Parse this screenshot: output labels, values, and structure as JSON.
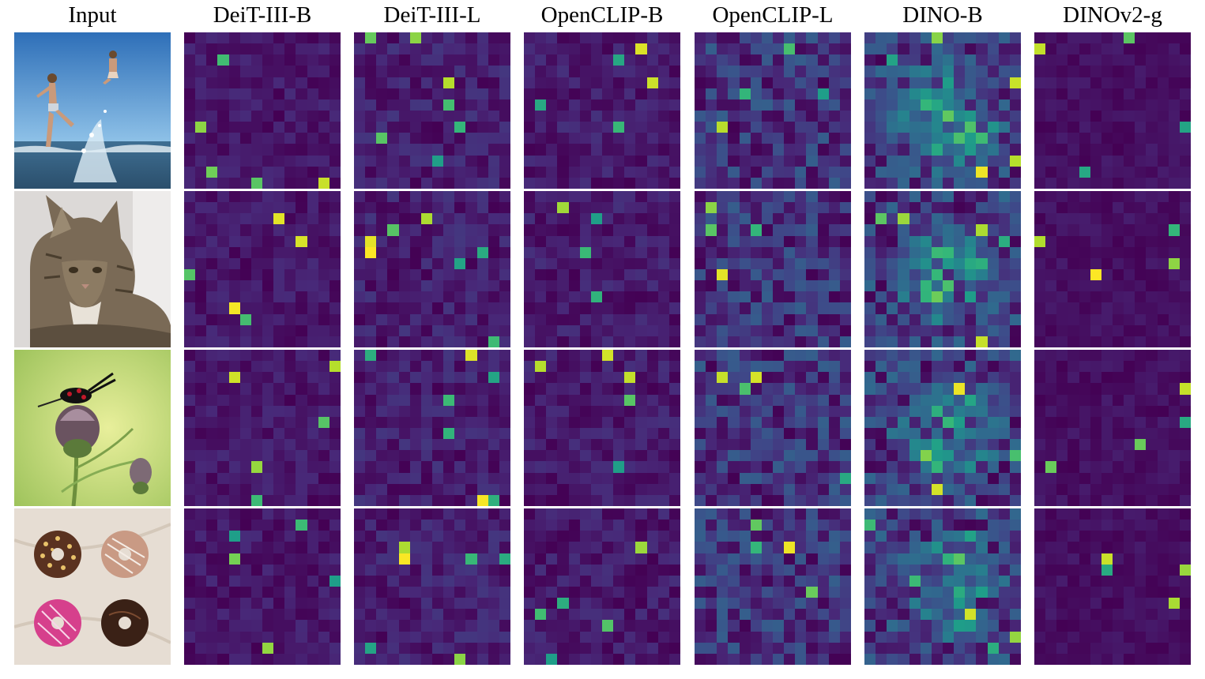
{
  "figure": {
    "columns": [
      "Input",
      "DeiT-III-B",
      "DeiT-III-L",
      "OpenCLIP-B",
      "OpenCLIP-L",
      "DINO-B",
      "DINOv2-g"
    ],
    "rows": [
      {
        "subject": "children-splashing-in-sea"
      },
      {
        "subject": "tabby-cat"
      },
      {
        "subject": "beetle-on-thistle"
      },
      {
        "subject": "four-donuts"
      }
    ],
    "colormap": "viridis",
    "grid_size": 14
  }
}
